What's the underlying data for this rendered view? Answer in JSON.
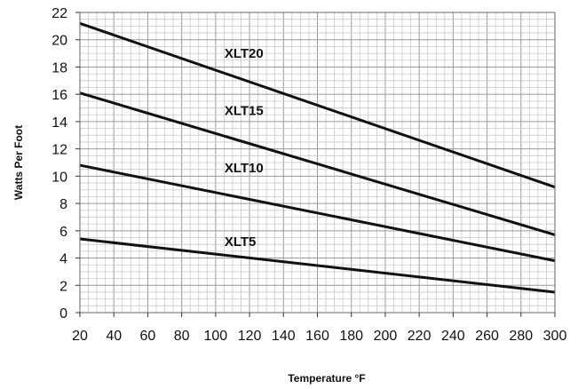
{
  "chart_data": {
    "type": "line",
    "xlabel": "Temperature °F",
    "ylabel": "Watts Per Foot",
    "xlim": [
      20,
      300
    ],
    "ylim": [
      0,
      22
    ],
    "x_ticks": [
      20,
      40,
      60,
      80,
      100,
      120,
      140,
      160,
      180,
      200,
      220,
      240,
      260,
      280,
      300
    ],
    "y_ticks": [
      0,
      2,
      4,
      6,
      8,
      10,
      12,
      14,
      16,
      18,
      20,
      22
    ],
    "grid": true,
    "series": [
      {
        "name": "XLT20",
        "x": [
          20,
          300
        ],
        "y": [
          21.2,
          9.2
        ],
        "label_at": [
          100,
          19
        ]
      },
      {
        "name": "XLT15",
        "x": [
          20,
          300
        ],
        "y": [
          16.1,
          5.7
        ],
        "label_at": [
          100,
          14.8
        ]
      },
      {
        "name": "XLT10",
        "x": [
          20,
          300
        ],
        "y": [
          10.8,
          3.8
        ],
        "label_at": [
          100,
          10.6
        ]
      },
      {
        "name": "XLT5",
        "x": [
          20,
          300
        ],
        "y": [
          5.4,
          1.5
        ],
        "label_at": [
          100,
          5.2
        ]
      }
    ]
  }
}
